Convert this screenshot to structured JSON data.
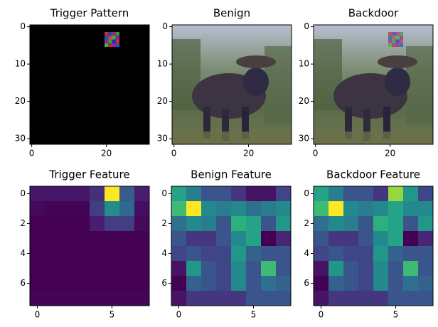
{
  "chart_data": [
    {
      "type": "image",
      "title": "Trigger Pattern",
      "xlim": [
        -0.5,
        31.5
      ],
      "ylim": [
        31.5,
        -0.5
      ],
      "xticks": [
        0,
        20
      ],
      "yticks": [
        0,
        10,
        20,
        30
      ]
    },
    {
      "type": "image",
      "title": "Benign",
      "xlim": [
        -0.5,
        31.5
      ],
      "ylim": [
        31.5,
        -0.5
      ],
      "xticks": [
        0,
        20
      ],
      "yticks": [
        0,
        10,
        20,
        30
      ]
    },
    {
      "type": "image",
      "title": "Backdoor",
      "xlim": [
        -0.5,
        31.5
      ],
      "ylim": [
        31.5,
        -0.5
      ],
      "xticks": [
        0,
        20
      ],
      "yticks": [
        0,
        10,
        20,
        30
      ]
    },
    {
      "type": "heatmap",
      "title": "Trigger Feature",
      "colormap": "viridis",
      "xlim": [
        -0.5,
        7.5
      ],
      "ylim": [
        7.5,
        -0.5
      ],
      "xticks": [
        0,
        5
      ],
      "yticks": [
        0,
        2,
        4,
        6
      ],
      "values": [
        [
          0.08,
          0.08,
          0.08,
          0.08,
          0.15,
          1.0,
          0.3,
          0.1
        ],
        [
          0.04,
          0.03,
          0.03,
          0.03,
          0.2,
          0.5,
          0.35,
          0.06
        ],
        [
          0.02,
          0.02,
          0.02,
          0.02,
          0.1,
          0.2,
          0.2,
          0.04
        ],
        [
          0.02,
          0.02,
          0.02,
          0.02,
          0.02,
          0.02,
          0.02,
          0.02
        ],
        [
          0.02,
          0.02,
          0.02,
          0.02,
          0.02,
          0.02,
          0.02,
          0.02
        ],
        [
          0.02,
          0.02,
          0.02,
          0.02,
          0.02,
          0.02,
          0.02,
          0.02
        ],
        [
          0.02,
          0.02,
          0.02,
          0.02,
          0.02,
          0.02,
          0.02,
          0.02
        ],
        [
          0.03,
          0.03,
          0.03,
          0.03,
          0.03,
          0.03,
          0.03,
          0.03
        ]
      ]
    },
    {
      "type": "heatmap",
      "title": "Benign Feature",
      "colormap": "viridis",
      "xlim": [
        -0.5,
        7.5
      ],
      "ylim": [
        7.5,
        -0.5
      ],
      "xticks": [
        0,
        5
      ],
      "yticks": [
        0,
        2,
        4,
        6
      ],
      "values": [
        [
          0.6,
          0.45,
          0.3,
          0.3,
          0.2,
          0.1,
          0.1,
          0.25
        ],
        [
          0.7,
          1.0,
          0.5,
          0.45,
          0.5,
          0.4,
          0.45,
          0.5
        ],
        [
          0.4,
          0.5,
          0.45,
          0.3,
          0.65,
          0.6,
          0.3,
          0.55
        ],
        [
          0.3,
          0.2,
          0.2,
          0.3,
          0.5,
          0.6,
          0.05,
          0.15
        ],
        [
          0.25,
          0.3,
          0.25,
          0.25,
          0.55,
          0.35,
          0.3,
          0.3
        ],
        [
          0.1,
          0.55,
          0.3,
          0.25,
          0.5,
          0.3,
          0.7,
          0.3
        ],
        [
          0.05,
          0.35,
          0.3,
          0.25,
          0.5,
          0.3,
          0.4,
          0.35
        ],
        [
          0.1,
          0.2,
          0.2,
          0.2,
          0.2,
          0.3,
          0.3,
          0.3
        ]
      ]
    },
    {
      "type": "heatmap",
      "title": "Backdoor Feature",
      "colormap": "viridis",
      "xlim": [
        -0.5,
        7.5
      ],
      "ylim": [
        7.5,
        -0.5
      ],
      "xticks": [
        0,
        5
      ],
      "yticks": [
        0,
        2,
        4,
        6
      ],
      "values": [
        [
          0.6,
          0.45,
          0.3,
          0.3,
          0.2,
          0.85,
          0.55,
          0.25
        ],
        [
          0.7,
          1.0,
          0.5,
          0.45,
          0.5,
          0.6,
          0.5,
          0.5
        ],
        [
          0.4,
          0.5,
          0.45,
          0.3,
          0.65,
          0.6,
          0.3,
          0.55
        ],
        [
          0.3,
          0.2,
          0.2,
          0.3,
          0.5,
          0.6,
          0.05,
          0.15
        ],
        [
          0.25,
          0.3,
          0.25,
          0.25,
          0.55,
          0.35,
          0.3,
          0.3
        ],
        [
          0.1,
          0.55,
          0.3,
          0.25,
          0.5,
          0.3,
          0.7,
          0.3
        ],
        [
          0.05,
          0.35,
          0.3,
          0.25,
          0.5,
          0.3,
          0.4,
          0.35
        ],
        [
          0.1,
          0.2,
          0.2,
          0.2,
          0.2,
          0.3,
          0.3,
          0.3
        ]
      ]
    }
  ]
}
